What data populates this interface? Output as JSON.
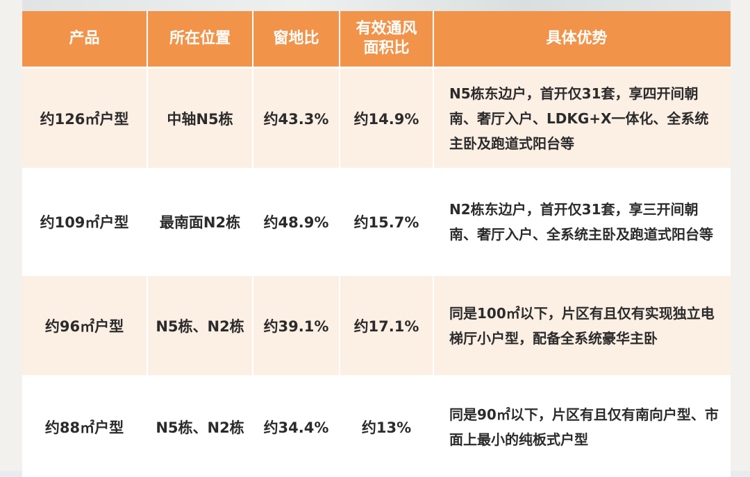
{
  "table": {
    "headers": [
      "产品",
      "所在位置",
      "窗地比",
      "有效通风\n面积比",
      "具体优势"
    ],
    "rows": [
      {
        "product": "约126㎡户型",
        "location": "中轴N5栋",
        "window_ratio": "约43.3%",
        "ventilation_ratio": "约14.9%",
        "advantages": "N5栋东边户，首开仅31套，享四开间朝南、奢厅入户、LDKG+X一体化、全系统主卧及跑道式阳台等"
      },
      {
        "product": "约109㎡户型",
        "location": "最南面N2栋",
        "window_ratio": "约48.9%",
        "ventilation_ratio": "约15.7%",
        "advantages": "N2栋东边户，首开仅31套，享三开间朝南、奢厅入户、全系统主卧及跑道式阳台等"
      },
      {
        "product": "约96㎡户型",
        "location": "N5栋、N2栋",
        "window_ratio": "约39.1%",
        "ventilation_ratio": "约17.1%",
        "advantages": "同是100㎡以下，片区有且仅有实现独立电梯厅小户型，配备全系统豪华主卧"
      },
      {
        "product": "约88㎡户型",
        "location": "N5栋、N2栋",
        "window_ratio": "约34.4%",
        "ventilation_ratio": "约13%",
        "advantages": "同是90㎡以下，片区有且仅有南向户型、市面上最小的纯板式户型"
      }
    ]
  },
  "colors": {
    "header_bg": "#f2934a",
    "row_alt_bg": "#fcefe4",
    "row_bg": "#ffffff"
  }
}
